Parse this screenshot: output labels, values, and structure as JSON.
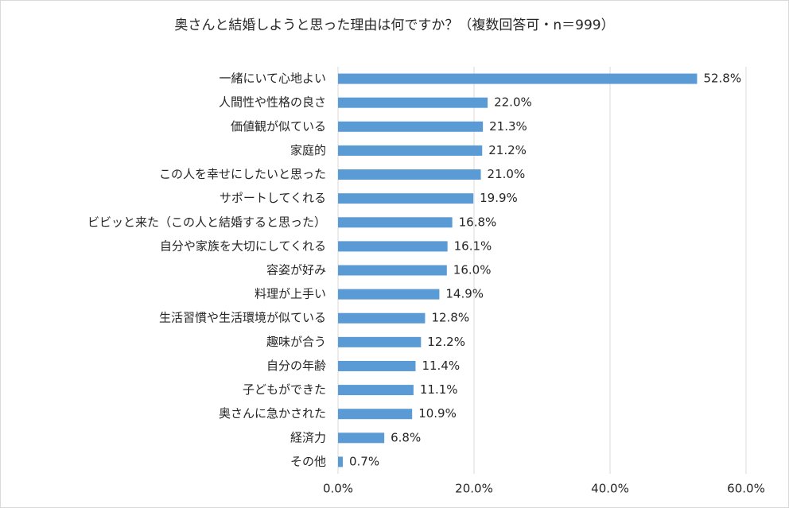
{
  "chart_data": {
    "type": "bar",
    "orientation": "horizontal",
    "title": "奥さんと結婚しようと思った理由は何ですか？（複数回答可・n＝999）",
    "categories": [
      "一緒にいて心地よい",
      "人間性や性格の良さ",
      "価値観が似ている",
      "家庭的",
      "この人を幸せにしたいと思った",
      "サポートしてくれる",
      "ビビッと来た（この人と結婚すると思った）",
      "自分や家族を大切にしてくれる",
      "容姿が好み",
      "料理が上手い",
      "生活習慣や生活環境が似ている",
      "趣味が合う",
      "自分の年齢",
      "子どもができた",
      "奥さんに急かされた",
      "経済力",
      "その他"
    ],
    "values": [
      52.8,
      22.0,
      21.3,
      21.2,
      21.0,
      19.9,
      16.8,
      16.1,
      16.0,
      14.9,
      12.8,
      12.2,
      11.4,
      11.1,
      10.9,
      6.8,
      0.7
    ],
    "value_labels": [
      "52.8%",
      "22.0%",
      "21.3%",
      "21.2%",
      "21.0%",
      "19.9%",
      "16.8%",
      "16.1%",
      "16.0%",
      "14.9%",
      "12.8%",
      "12.2%",
      "11.4%",
      "11.1%",
      "10.9%",
      "6.8%",
      "0.7%"
    ],
    "color": "#5b9bd5",
    "xlim": [
      0,
      60
    ],
    "xticks": [
      {
        "value": 0,
        "label": "0.0%"
      },
      {
        "value": 20,
        "label": "20.0%"
      },
      {
        "value": 40,
        "label": "40.0%"
      },
      {
        "value": 60,
        "label": "60.0%"
      }
    ],
    "grid": true
  }
}
